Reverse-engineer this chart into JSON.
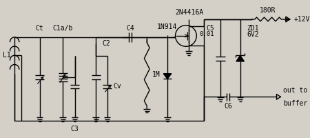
{
  "bg_color": "#d4d0c8",
  "line_color": "#000000",
  "title_2N4416A": "2N4416A",
  "title_180R": "180R",
  "label_L1": "L1",
  "label_Ct": "Ct",
  "label_C1ab": "C1a/b",
  "label_C2": "C2",
  "label_C3": "C3",
  "label_C4": "C4",
  "label_Cv": "Cv",
  "label_1M": "1M",
  "label_1N914": "1N914",
  "label_C5": "C5",
  "label_C5val": "0.01",
  "label_ZD1": "ZD1",
  "label_6V2": "6V2",
  "label_C6": "C6",
  "label_12V": "+12V",
  "label_out": "out to",
  "label_buffer": "buffer"
}
